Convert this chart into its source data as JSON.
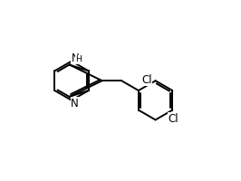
{
  "bg_color": "#ffffff",
  "bond_color": "#000000",
  "bond_lw": 1.4,
  "xlim": [
    -0.5,
    8.5
  ],
  "ylim": [
    -1.5,
    7.5
  ]
}
